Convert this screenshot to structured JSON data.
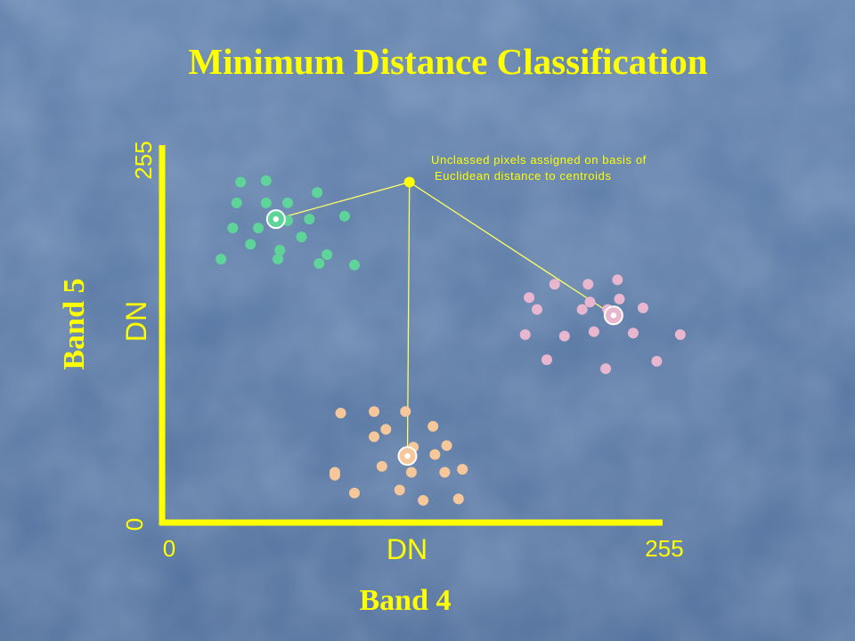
{
  "slide": {
    "title": "Minimum Distance Classification",
    "y_band_label": "Band 5",
    "x_band_label": "Band 4",
    "y_axis_label": "DN",
    "x_axis_label": "DN",
    "y_min_label": "0",
    "y_max_label": "255",
    "x_min_label": "0",
    "x_max_label": "255",
    "annotation_line1": "Unclassed pixels assigned on basis of",
    "annotation_line2": "Euclidean distance to centroids"
  },
  "colors": {
    "background": "#5a7aa6",
    "title": "#ffff00",
    "axis": "#ffff00",
    "axis_text": "#ffff00",
    "connector": "#ffff66",
    "cluster_green": "#5fd49a",
    "cluster_pink": "#e8b6cf",
    "cluster_orange": "#f6c79a",
    "centroid_ring": "#ffffff"
  },
  "chart_data": {
    "type": "scatter",
    "xlim": [
      0,
      255
    ],
    "ylim": [
      0,
      255
    ],
    "series": [
      {
        "color": "green",
        "points": [
          [
            40,
            230
          ],
          [
            53,
            231
          ],
          [
            38,
            216
          ],
          [
            53,
            216
          ],
          [
            64,
            216
          ],
          [
            79,
            223
          ],
          [
            36,
            199
          ],
          [
            49,
            199
          ],
          [
            64,
            204
          ],
          [
            75,
            205
          ],
          [
            93,
            207
          ],
          [
            45,
            188
          ],
          [
            60,
            184
          ],
          [
            71,
            193
          ],
          [
            84,
            181
          ],
          [
            30,
            178
          ],
          [
            59,
            178
          ],
          [
            80,
            175
          ],
          [
            98,
            174
          ]
        ],
        "centroid": [
          58,
          205
        ]
      },
      {
        "color": "pink",
        "points": [
          [
            200,
            161
          ],
          [
            217,
            161
          ],
          [
            232,
            164
          ],
          [
            187,
            152
          ],
          [
            218,
            149
          ],
          [
            233,
            151
          ],
          [
            191,
            144
          ],
          [
            214,
            144
          ],
          [
            227,
            144
          ],
          [
            245,
            145
          ],
          [
            185,
            127
          ],
          [
            205,
            126
          ],
          [
            220,
            129
          ],
          [
            240,
            128
          ],
          [
            264,
            127
          ],
          [
            196,
            110
          ],
          [
            226,
            104
          ],
          [
            252,
            109
          ]
        ],
        "centroid": [
          230,
          140
        ]
      },
      {
        "color": "orange",
        "points": [
          [
            108,
            75
          ],
          [
            124,
            75
          ],
          [
            91,
            74
          ],
          [
            114,
            63
          ],
          [
            138,
            65
          ],
          [
            139,
            46
          ],
          [
            108,
            58
          ],
          [
            128,
            51
          ],
          [
            145,
            52
          ],
          [
            153,
            36
          ],
          [
            112,
            38
          ],
          [
            127,
            34
          ],
          [
            144,
            34
          ],
          [
            88,
            32
          ],
          [
            88,
            34
          ],
          [
            98,
            20
          ],
          [
            121,
            22
          ],
          [
            133,
            15
          ],
          [
            151,
            16
          ]
        ],
        "centroid": [
          125,
          45
        ]
      }
    ],
    "unclassed_pixel": [
      126,
      230
    ]
  }
}
